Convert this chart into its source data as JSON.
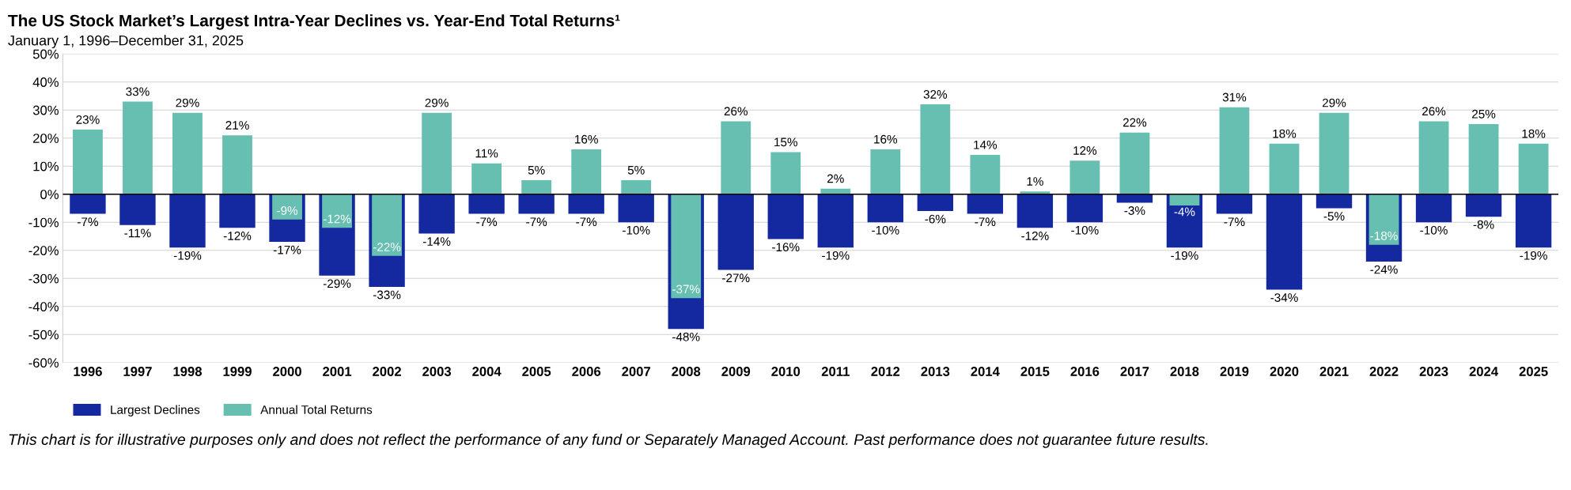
{
  "chart_data": {
    "type": "bar",
    "title": "The US Stock Market’s Largest Intra-Year Declines vs. Year-End Total Returns¹",
    "subtitle": "January 1, 1996–December 31, 2025",
    "categories": [
      "1996",
      "1997",
      "1998",
      "1999",
      "2000",
      "2001",
      "2002",
      "2003",
      "2004",
      "2005",
      "2006",
      "2007",
      "2008",
      "2009",
      "2010",
      "2011",
      "2012",
      "2013",
      "2014",
      "2015",
      "2016",
      "2017",
      "2018",
      "2019",
      "2020",
      "2021",
      "2022",
      "2023",
      "2024",
      "2025"
    ],
    "series": [
      {
        "name": "Largest Declines",
        "color": "#1428a0",
        "values": [
          -7,
          -11,
          -19,
          -12,
          -17,
          -29,
          -33,
          -14,
          -7,
          -7,
          -7,
          -10,
          -48,
          -27,
          -16,
          -19,
          -10,
          -6,
          -7,
          -12,
          -10,
          -3,
          -19,
          -7,
          -34,
          -5,
          -24,
          -10,
          -8,
          -19
        ],
        "value_labels": [
          "-7%",
          "-11%",
          "-19%",
          "-12%",
          "-17%",
          "-29%",
          "-33%",
          "-14%",
          "-7%",
          "-7%",
          "-7%",
          "-10%",
          "-48%",
          "-27%",
          "-16%",
          "-19%",
          "-10%",
          "-6%",
          "-7%",
          "-12%",
          "-10%",
          "-3%",
          "-19%",
          "-7%",
          "-34%",
          "-5%",
          "-24%",
          "-10%",
          "-8%",
          "-19%"
        ]
      },
      {
        "name": "Annual Total Returns",
        "color": "#66bfb0",
        "values": [
          23,
          33,
          29,
          21,
          -9,
          -12,
          -22,
          29,
          11,
          5,
          16,
          5,
          -37,
          26,
          15,
          2,
          16,
          32,
          14,
          1,
          12,
          22,
          -4,
          31,
          18,
          29,
          -18,
          26,
          25,
          18
        ],
        "value_labels": [
          "23%",
          "33%",
          "29%",
          "21%",
          "-9%",
          "-12%",
          "-22%",
          "29%",
          "11%",
          "5%",
          "16%",
          "5%",
          "-37%",
          "26%",
          "15%",
          "2%",
          "16%",
          "32%",
          "14%",
          "1%",
          "12%",
          "22%",
          "-4%",
          "31%",
          "18%",
          "29%",
          "-18%",
          "26%",
          "25%",
          "18%"
        ]
      }
    ],
    "ylim": [
      -60,
      50
    ],
    "yticks": [
      {
        "value": -60,
        "label": "-60%"
      },
      {
        "value": -50,
        "label": "-50%"
      },
      {
        "value": -40,
        "label": "-40%"
      },
      {
        "value": -30,
        "label": "-30%"
      },
      {
        "value": -20,
        "label": "-20%"
      },
      {
        "value": -10,
        "label": "-10%"
      },
      {
        "value": 0,
        "label": "0%"
      },
      {
        "value": 10,
        "label": "10%"
      },
      {
        "value": 20,
        "label": "20%"
      },
      {
        "value": 30,
        "label": "30%"
      },
      {
        "value": 40,
        "label": "40%"
      },
      {
        "value": 50,
        "label": "50%"
      }
    ],
    "ref_lines": [
      {
        "axis": "y",
        "value": 0,
        "color": "#000000"
      }
    ],
    "grid": "y",
    "legend": "bottom left",
    "annotations": [
      "This chart is for illustrative purposes only and does not reflect the performance of any fund or Separately Managed Account. Past performance does not guarantee future results."
    ]
  }
}
